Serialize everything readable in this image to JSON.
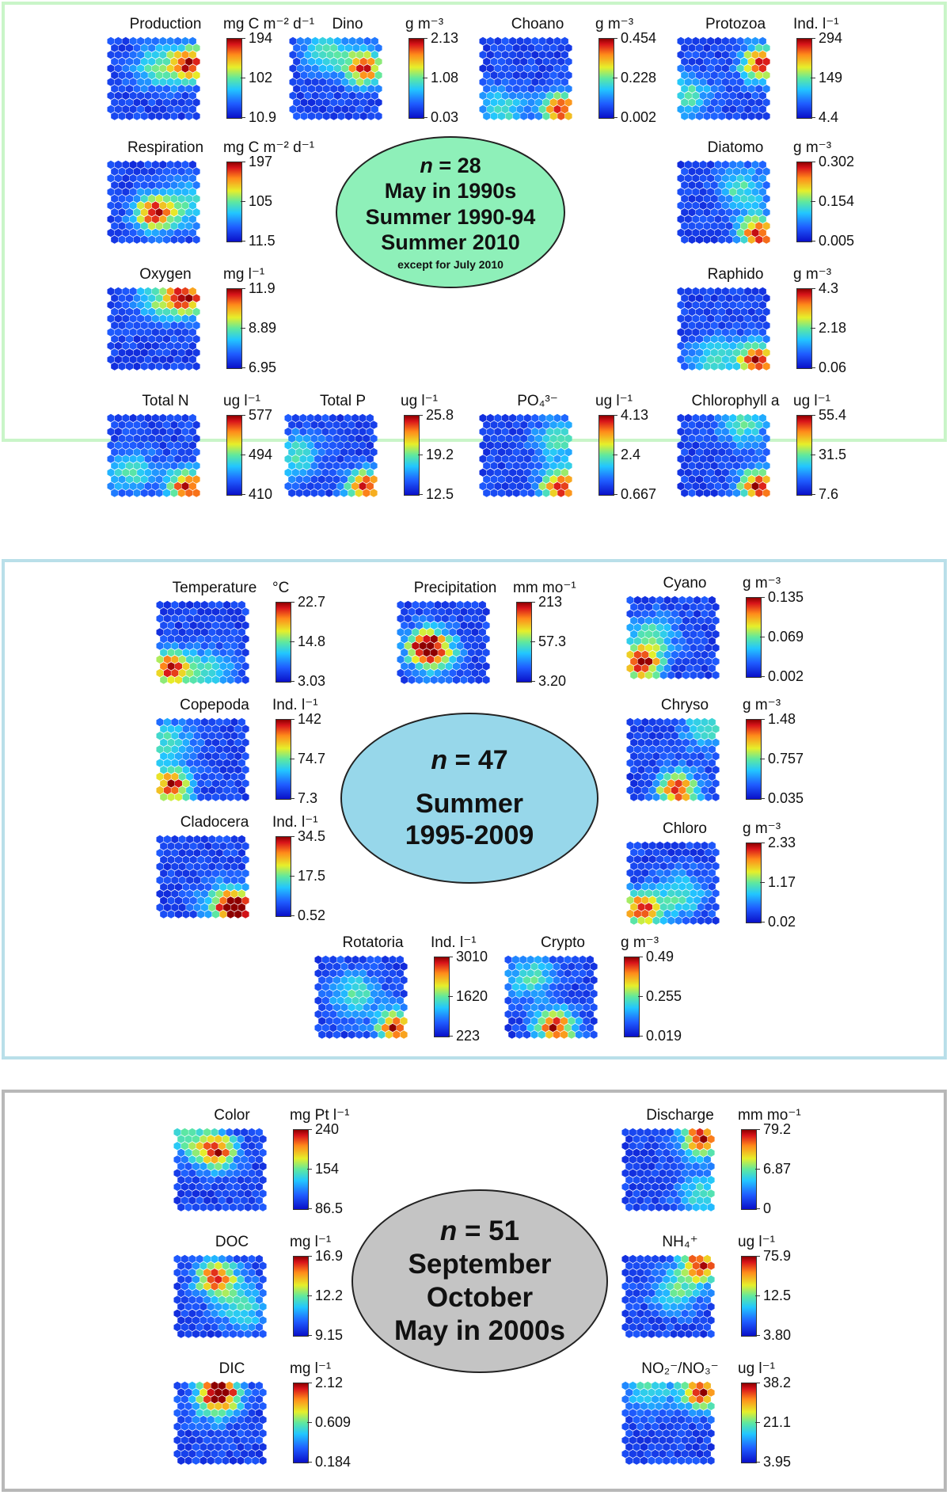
{
  "colors": {
    "panel1_border": "#c9f5c8",
    "panel2_border": "#b9dfe9",
    "panel3_border": "#b8b8b8",
    "ellipse1": "#8ef0b9",
    "ellipse2": "#97d7ea",
    "ellipse3": "#c4c4c4"
  },
  "panels": [
    {
      "ellipse": {
        "n_label": "n",
        "n_value": "= 28",
        "lines": [
          "May in 1990s",
          "Summer 1990-94",
          "Summer 2010"
        ],
        "note": "except for July 2010"
      },
      "tiles": [
        {
          "name": "Production",
          "unit": "mg C m⁻² d⁻¹",
          "max": "194",
          "mid": "102",
          "min": "10.9",
          "hot": "right",
          "seed": 1
        },
        {
          "name": "Dino",
          "unit": "g m⁻³",
          "max": "2.13",
          "mid": "1.08",
          "min": "0.03",
          "hot": "rightmid",
          "seed": 2
        },
        {
          "name": "Choano",
          "unit": "g m⁻³",
          "max": "0.454",
          "mid": "0.228",
          "min": "0.002",
          "hot": "bottomright",
          "seed": 3
        },
        {
          "name": "Protozoa",
          "unit": "Ind. l⁻¹",
          "max": "294",
          "mid": "149",
          "min": "4.4",
          "hot": "right",
          "seed": 4
        },
        {
          "name": "Respiration",
          "unit": "mg C m⁻² d⁻¹",
          "max": "197",
          "mid": "105",
          "min": "11.5",
          "hot": "center",
          "seed": 5
        },
        {
          "name": "Diatomo",
          "unit": "g m⁻³",
          "max": "0.302",
          "mid": "0.154",
          "min": "0.005",
          "hot": "bottomright",
          "seed": 6
        },
        {
          "name": "Oxygen",
          "unit": "mg l⁻¹",
          "max": "11.9",
          "mid": "8.89",
          "min": "6.95",
          "hot": "topright",
          "seed": 7
        },
        {
          "name": "Raphido",
          "unit": "g m⁻³",
          "max": "4.3",
          "mid": "2.18",
          "min": "0.06",
          "hot": "bottomright",
          "seed": 8
        },
        {
          "name": "Total N",
          "unit": "ug l⁻¹",
          "max": "577",
          "mid": "494",
          "min": "410",
          "hot": "bottomright",
          "seed": 9
        },
        {
          "name": "Total P",
          "unit": "ug l⁻¹",
          "max": "25.8",
          "mid": "19.2",
          "min": "12.5",
          "hot": "bottomright",
          "seed": 10
        },
        {
          "name": "PO₄³⁻",
          "unit": "ug l⁻¹",
          "max": "4.13",
          "mid": "2.4",
          "min": "0.667",
          "hot": "bottomright",
          "seed": 11
        },
        {
          "name": "Chlorophyll a",
          "unit": "ug l⁻¹",
          "max": "55.4",
          "mid": "31.5",
          "min": "7.6",
          "hot": "bottomright",
          "seed": 12
        }
      ]
    },
    {
      "ellipse": {
        "n_label": "n",
        "n_value": "= 47",
        "lines": [
          "Summer",
          "1995-2009"
        ],
        "note": ""
      },
      "tiles": [
        {
          "name": "Temperature",
          "unit": "°C",
          "max": "22.7",
          "mid": "14.8",
          "min": "3.03",
          "hot": "bottomleft",
          "seed": 13
        },
        {
          "name": "Precipitation",
          "unit": "mm mo⁻¹",
          "max": "213",
          "mid": "57.3",
          "min": "3.20",
          "hot": "leftmid",
          "seed": 14
        },
        {
          "name": "Cyano",
          "unit": "g m⁻³",
          "max": "0.135",
          "mid": "0.069",
          "min": "0.002",
          "hot": "bottomleft",
          "seed": 15
        },
        {
          "name": "Copepoda",
          "unit": "Ind. l⁻¹",
          "max": "142",
          "mid": "74.7",
          "min": "7.3",
          "hot": "bottomleft",
          "seed": 16
        },
        {
          "name": "Chryso",
          "unit": "g m⁻³",
          "max": "1.48",
          "mid": "0.757",
          "min": "0.035",
          "hot": "bottommid",
          "seed": 17
        },
        {
          "name": "Cladocera",
          "unit": "Ind. l⁻¹",
          "max": "34.5",
          "mid": "17.5",
          "min": "0.52",
          "hot": "bottomright",
          "seed": 18
        },
        {
          "name": "Chloro",
          "unit": "g m⁻³",
          "max": "2.33",
          "mid": "1.17",
          "min": "0.02",
          "hot": "bottomleft",
          "seed": 19
        },
        {
          "name": "Rotatoria",
          "unit": "Ind. l⁻¹",
          "max": "3010",
          "mid": "1620",
          "min": "223",
          "hot": "bottomright",
          "seed": 20
        },
        {
          "name": "Crypto",
          "unit": "g m⁻³",
          "max": "0.49",
          "mid": "0.255",
          "min": "0.019",
          "hot": "bottommid",
          "seed": 21
        }
      ]
    },
    {
      "ellipse": {
        "n_label": "n",
        "n_value": "= 51",
        "lines": [
          "September",
          "October",
          "May in 2000s"
        ],
        "note": ""
      },
      "tiles": [
        {
          "name": "Color",
          "unit": "mg Pt l⁻¹",
          "max": "240",
          "mid": "154",
          "min": "86.5",
          "hot": "topmid",
          "seed": 22
        },
        {
          "name": "Discharge",
          "unit": "mm mo⁻¹",
          "max": "79.2",
          "mid": "6.87",
          "min": "0",
          "hot": "topright",
          "seed": 23
        },
        {
          "name": "DOC",
          "unit": "mg l⁻¹",
          "max": "16.9",
          "mid": "12.2",
          "min": "9.15",
          "hot": "topmid",
          "seed": 24
        },
        {
          "name": "NH₄⁺",
          "unit": "ug l⁻¹",
          "max": "75.9",
          "mid": "12.5",
          "min": "3.80",
          "hot": "topright",
          "seed": 25
        },
        {
          "name": "DIC",
          "unit": "mg l⁻¹",
          "max": "2.12",
          "mid": "0.609",
          "min": "0.184",
          "hot": "top",
          "seed": 26
        },
        {
          "name": "NO₂⁻/NO₃⁻",
          "unit": "ug l⁻¹",
          "max": "38.2",
          "mid": "21.1",
          "min": "3.95",
          "hot": "topright",
          "seed": 27
        }
      ]
    }
  ]
}
